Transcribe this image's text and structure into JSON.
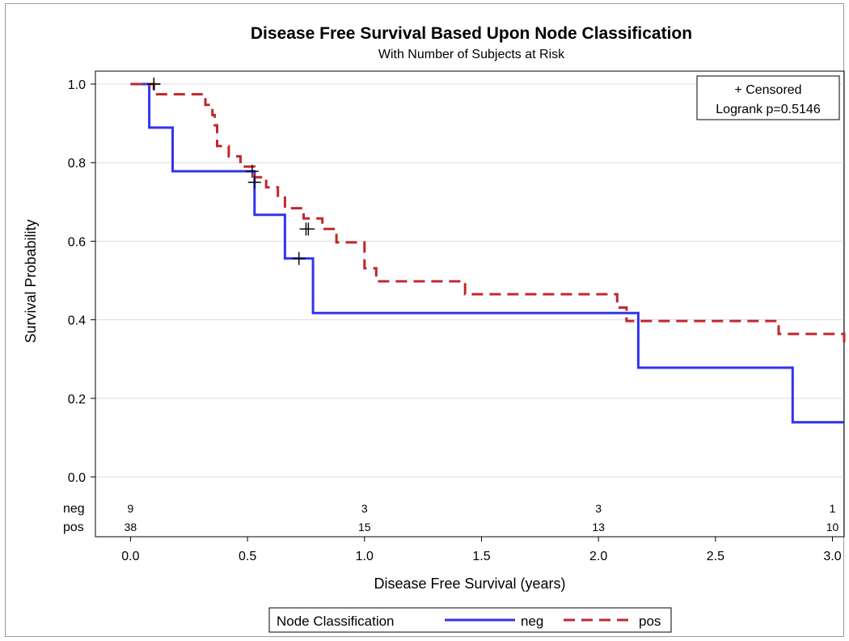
{
  "chart_data": {
    "type": "line",
    "step": true,
    "title": "Disease Free Survival Based Upon Node Classification",
    "subtitle": "With Number of Subjects at Risk",
    "xlabel": "Disease Free Survival (years)",
    "ylabel": "Survival Probability",
    "xlim": [
      -0.15,
      3.05
    ],
    "ylim": [
      0.0,
      1.0
    ],
    "xticks": [
      "0.0",
      "0.5",
      "1.0",
      "1.5",
      "2.0",
      "2.5",
      "3.0"
    ],
    "yticks": [
      "0.0",
      "0.2",
      "0.4",
      "0.6",
      "0.8",
      "1.0"
    ],
    "grid": "horizontal",
    "inset_box": {
      "censored_label": "+ Censored",
      "logrank_label": "Logrank p=0.5146",
      "position": "top-right"
    },
    "legend": {
      "title": "Node Classification",
      "position": "bottom"
    },
    "series": [
      {
        "name": "neg",
        "color": "#3333ee",
        "dash": "solid",
        "x": [
          0.0,
          0.08,
          0.18,
          0.53,
          0.66,
          0.78,
          2.17,
          2.83,
          3.05
        ],
        "y": [
          1.0,
          0.889,
          0.778,
          0.667,
          0.556,
          0.417,
          0.278,
          0.139,
          0.139
        ],
        "censored": [
          [
            0.1,
            1.0
          ],
          [
            0.52,
            0.778
          ],
          [
            0.53,
            0.75
          ],
          [
            0.72,
            0.556
          ]
        ]
      },
      {
        "name": "pos",
        "color": "#c0282d",
        "dash": "dashed",
        "x": [
          0.0,
          0.1,
          0.32,
          0.35,
          0.36,
          0.37,
          0.42,
          0.47,
          0.53,
          0.58,
          0.63,
          0.66,
          0.74,
          0.82,
          0.88,
          1.0,
          1.05,
          1.43,
          2.08,
          2.12,
          2.77,
          3.05
        ],
        "y": [
          1.0,
          0.974,
          0.947,
          0.921,
          0.895,
          0.842,
          0.816,
          0.79,
          0.763,
          0.737,
          0.711,
          0.684,
          0.658,
          0.631,
          0.597,
          0.531,
          0.498,
          0.465,
          0.431,
          0.397,
          0.364,
          0.331
        ],
        "censored": [
          [
            0.1,
            1.0
          ],
          [
            0.75,
            0.631
          ],
          [
            0.76,
            0.631
          ]
        ]
      }
    ],
    "at_risk": {
      "x": [
        0.0,
        1.0,
        2.0,
        3.0
      ],
      "rows": [
        {
          "name": "neg",
          "values": [
            "9",
            "3",
            "3",
            "1"
          ]
        },
        {
          "name": "pos",
          "values": [
            "38",
            "15",
            "13",
            "10"
          ]
        }
      ]
    }
  }
}
